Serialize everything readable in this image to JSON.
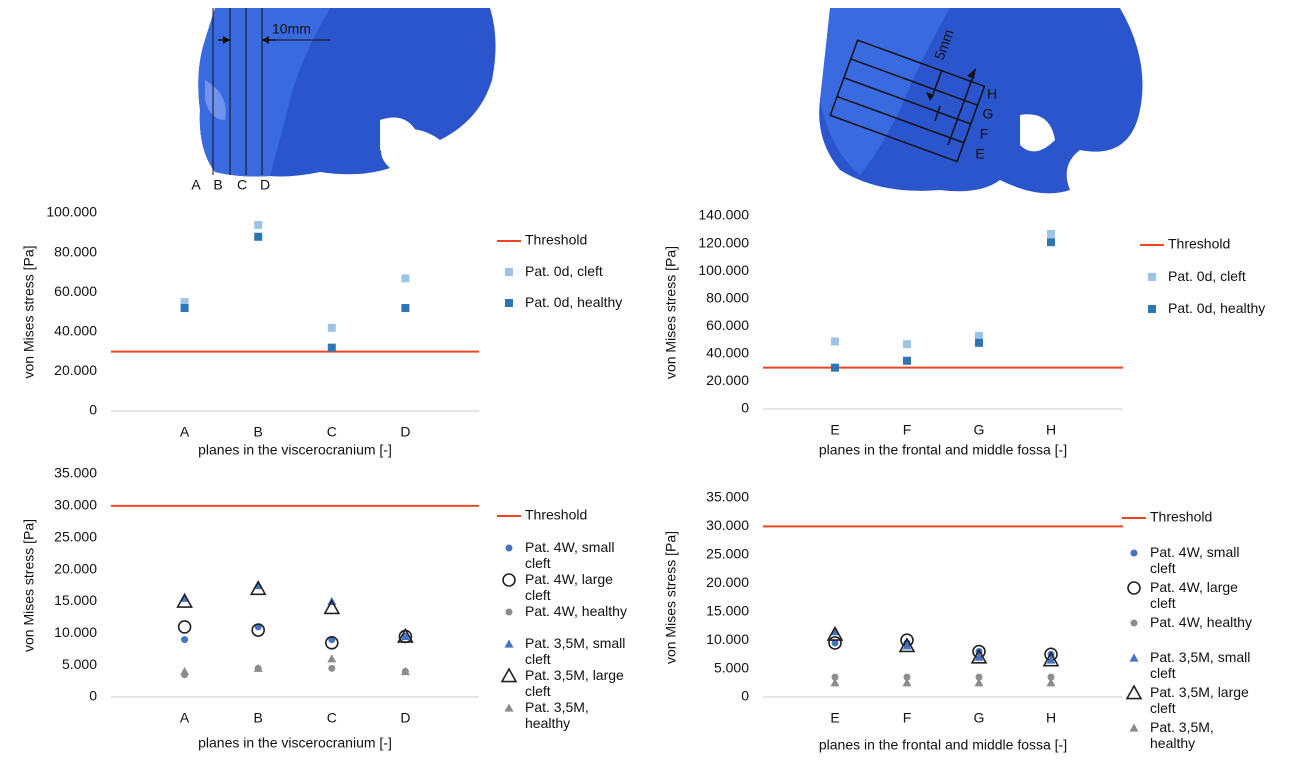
{
  "figures": [
    {
      "labels": [
        "10mm",
        "A",
        "B",
        "C",
        "D"
      ]
    },
    {
      "labels": [
        "5mm",
        "H",
        "G",
        "F",
        "E"
      ]
    }
  ],
  "chart_data": [
    {
      "type": "scatter",
      "categories": [
        "A",
        "B",
        "C",
        "D"
      ],
      "y_label": "von Mises stress [Pa]",
      "x_label": "planes in the viscerocranium [-]",
      "ylim": [
        0,
        100000
      ],
      "yticks": [
        0,
        {
          "value": 20000,
          "label": "20.000"
        },
        {
          "value": 40000,
          "label": "40.000"
        },
        {
          "value": 60000,
          "label": "60.000"
        },
        {
          "value": 80000,
          "label": "80.000"
        },
        {
          "value": 100000,
          "label": "100.000"
        }
      ],
      "threshold": {
        "name": "Threshold",
        "value": 30000,
        "color": "#ee4422"
      },
      "series": [
        {
          "name": "Pat. 0d, cleft",
          "color": "#9dc3e6",
          "marker": "square",
          "values": [
            55000,
            94000,
            42000,
            67000
          ]
        },
        {
          "name": "Pat. 0d, healthy",
          "color": "#2e75b6",
          "marker": "square",
          "values": [
            52000,
            88000,
            32000,
            52000
          ]
        }
      ]
    },
    {
      "type": "scatter",
      "categories": [
        "E",
        "F",
        "G",
        "H"
      ],
      "y_label": "von Mises stress [Pa]",
      "x_label": "planes in the frontal and middle fossa [-]",
      "ylim": [
        0,
        140000
      ],
      "yticks": [
        0,
        {
          "value": 20000,
          "label": "20.000"
        },
        {
          "value": 40000,
          "label": "40.000"
        },
        {
          "value": 60000,
          "label": "60.000"
        },
        {
          "value": 80000,
          "label": "80.000"
        },
        {
          "value": 100000,
          "label": "100.000"
        },
        {
          "value": 120000,
          "label": "120.000"
        },
        {
          "value": 140000,
          "label": "140.000"
        }
      ],
      "threshold": {
        "name": "Threshold",
        "value": 30000,
        "color": "#ee4422"
      },
      "series": [
        {
          "name": "Pat. 0d, cleft",
          "color": "#9dc3e6",
          "marker": "square",
          "values": [
            49000,
            47000,
            53000,
            127000
          ]
        },
        {
          "name": "Pat. 0d, healthy",
          "color": "#2e75b6",
          "marker": "square",
          "values": [
            30000,
            35000,
            48000,
            121000
          ]
        }
      ]
    },
    {
      "type": "scatter",
      "categories": [
        "A",
        "B",
        "C",
        "D"
      ],
      "y_label": "von Mises stress [Pa]",
      "x_label": "planes in the viscerocranium [-]",
      "ylim": [
        0,
        35000
      ],
      "yticks": [
        0,
        {
          "value": 5000,
          "label": "5.000"
        },
        {
          "value": 10000,
          "label": "10.000"
        },
        {
          "value": 15000,
          "label": "15.000"
        },
        {
          "value": 20000,
          "label": "20.000"
        },
        {
          "value": 25000,
          "label": "25.000"
        },
        {
          "value": 30000,
          "label": "30.000"
        },
        {
          "value": 35000,
          "label": "35.000"
        }
      ],
      "threshold": {
        "name": "Threshold",
        "value": 30000,
        "color": "#ee4422"
      },
      "series": [
        {
          "name": "Pat. 4W, small cleft",
          "color": "#4472c4",
          "marker": "circle",
          "values": [
            9000,
            11000,
            9000,
            9500
          ]
        },
        {
          "name": "Pat. 4W, large cleft",
          "color": "#222222",
          "marker": "open-circle",
          "values": [
            11000,
            10500,
            8500,
            9500
          ]
        },
        {
          "name": "Pat. 4W, healthy",
          "color": "#8c8c8c",
          "marker": "circle",
          "values": [
            3500,
            4500,
            4500,
            4000
          ]
        },
        {
          "name": "Pat. 3,5M, small cleft",
          "color": "#4472c4",
          "marker": "triangle",
          "values": [
            15500,
            17500,
            15000,
            9500
          ]
        },
        {
          "name": "Pat. 3,5M, large cleft",
          "color": "#222222",
          "marker": "open-triangle",
          "values": [
            15000,
            17000,
            14000,
            9500
          ]
        },
        {
          "name": "Pat. 3,5M, healthy",
          "color": "#8c8c8c",
          "marker": "triangle",
          "values": [
            4000,
            4500,
            6000,
            4000
          ]
        }
      ]
    },
    {
      "type": "scatter",
      "categories": [
        "E",
        "F",
        "G",
        "H"
      ],
      "y_label": "von Mises stress [Pa]",
      "x_label": "planes in the frontal and middle fossa [-]",
      "ylim": [
        0,
        35000
      ],
      "yticks": [
        0,
        {
          "value": 5000,
          "label": "5.000"
        },
        {
          "value": 10000,
          "label": "10.000"
        },
        {
          "value": 15000,
          "label": "15.000"
        },
        {
          "value": 20000,
          "label": "20.000"
        },
        {
          "value": 25000,
          "label": "25.000"
        },
        {
          "value": 30000,
          "label": "30.000"
        },
        {
          "value": 35000,
          "label": "35.000"
        }
      ],
      "threshold": {
        "name": "Threshold",
        "value": 30000,
        "color": "#ee4422"
      },
      "series": [
        {
          "name": "Pat. 4W, small cleft",
          "color": "#4472c4",
          "marker": "circle",
          "values": [
            9500,
            9500,
            8000,
            7500
          ]
        },
        {
          "name": "Pat. 4W, large cleft",
          "color": "#222222",
          "marker": "open-circle",
          "values": [
            9500,
            10000,
            8000,
            7500
          ]
        },
        {
          "name": "Pat. 4W, healthy",
          "color": "#8c8c8c",
          "marker": "circle",
          "values": [
            3500,
            3500,
            3500,
            3500
          ]
        },
        {
          "name": "Pat. 3,5M, small cleft",
          "color": "#4472c4",
          "marker": "triangle",
          "values": [
            11500,
            9000,
            7000,
            6500
          ]
        },
        {
          "name": "Pat. 3,5M, large cleft",
          "color": "#222222",
          "marker": "open-triangle",
          "values": [
            11000,
            9000,
            7000,
            6500
          ]
        },
        {
          "name": "Pat. 3,5M, healthy",
          "color": "#8c8c8c",
          "marker": "triangle",
          "values": [
            2500,
            2500,
            2500,
            2500
          ]
        }
      ]
    }
  ]
}
